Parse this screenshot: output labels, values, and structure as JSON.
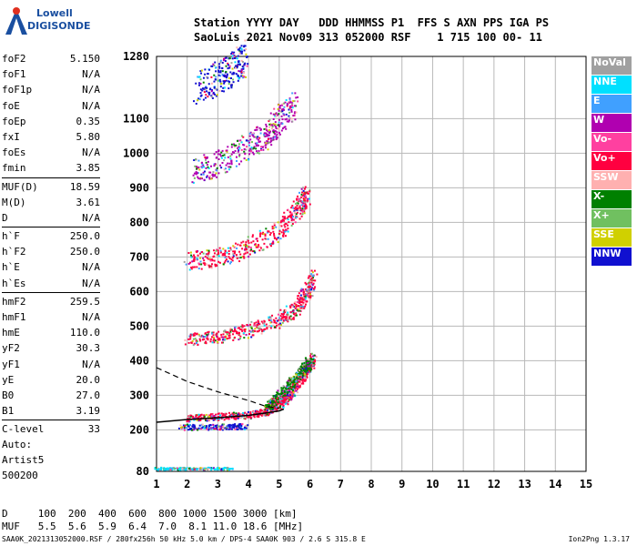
{
  "logo": {
    "line1": "Lowell",
    "line2": "DIGISONDE"
  },
  "header": {
    "line1": "Station YYYY DAY   DDD HHMMSS P1  FFS S AXN PPS IGA PS",
    "line2": "SaoLuis 2021 Nov09 313 052000 RSF    1 715 100 00- 11"
  },
  "params": [
    {
      "group": [
        {
          "name": "foF2",
          "value": "5.150"
        },
        {
          "name": "foF1",
          "value": "N/A"
        },
        {
          "name": "foF1p",
          "value": "N/A"
        },
        {
          "name": "foE",
          "value": "N/A"
        },
        {
          "name": "foEp",
          "value": "0.35"
        },
        {
          "name": "fxI",
          "value": "5.80"
        },
        {
          "name": "foEs",
          "value": "N/A"
        },
        {
          "name": "fmin",
          "value": "3.85"
        }
      ]
    },
    {
      "group": [
        {
          "name": "MUF(D)",
          "value": "18.59"
        },
        {
          "name": "M(D)",
          "value": "3.61"
        },
        {
          "name": "D",
          "value": "N/A"
        }
      ]
    },
    {
      "group": [
        {
          "name": "h`F",
          "value": "250.0"
        },
        {
          "name": "h`F2",
          "value": "250.0"
        },
        {
          "name": "h`E",
          "value": "N/A"
        },
        {
          "name": "h`Es",
          "value": "N/A"
        }
      ]
    },
    {
      "group": [
        {
          "name": "hmF2",
          "value": "259.5"
        },
        {
          "name": "hmF1",
          "value": "N/A"
        },
        {
          "name": "hmE",
          "value": "110.0"
        },
        {
          "name": "yF2",
          "value": "30.3"
        },
        {
          "name": "yF1",
          "value": "N/A"
        },
        {
          "name": "yE",
          "value": "20.0"
        },
        {
          "name": "B0",
          "value": "27.0"
        },
        {
          "name": "B1",
          "value": "3.19"
        }
      ]
    },
    {
      "group": [
        {
          "name": "C-level",
          "value": "33"
        }
      ]
    }
  ],
  "auto": {
    "line1": "Auto:",
    "line2": "Artist5",
    "line3": "500200"
  },
  "legend": [
    {
      "label": "NoVal",
      "color": "#a0a0a0"
    },
    {
      "label": "NNE",
      "color": "#00e0ff"
    },
    {
      "label": "E",
      "color": "#40a0ff"
    },
    {
      "label": "W",
      "color": "#b000b0"
    },
    {
      "label": "Vo-",
      "color": "#ff40a0"
    },
    {
      "label": "Vo+",
      "color": "#ff0040"
    },
    {
      "label": "SSW",
      "color": "#ffb0b0"
    },
    {
      "label": "X-",
      "color": "#008000"
    },
    {
      "label": "X+",
      "color": "#70c060"
    },
    {
      "label": "SSE",
      "color": "#d0d000"
    },
    {
      "label": "NNW",
      "color": "#1010d0"
    }
  ],
  "footer": {
    "line1": "D     100  200  400  600  800 1000 1500 3000 [km]",
    "line2": "MUF   5.5  5.6  5.9  6.4  7.0  8.1 11.0 18.6 [MHz]",
    "line3": "SAA0K_2021313052000.RSF / 280fx256h 50 kHz 5.0 km / DPS-4 SAA0K 903 / 2.6 S 315.8 E",
    "version": "Ion2Png 1.3.17"
  },
  "chart_data": {
    "type": "scatter",
    "xlim": [
      1,
      15
    ],
    "ylim": [
      80,
      1280
    ],
    "x_ticks": [
      1,
      2,
      3,
      4,
      5,
      6,
      7,
      8,
      9,
      10,
      11,
      12,
      13,
      14,
      15
    ],
    "y_ticks": [
      80,
      200,
      300,
      400,
      500,
      600,
      700,
      800,
      900,
      1000,
      1100,
      1280
    ],
    "grid": true,
    "legend_position": "right",
    "series": [
      {
        "color_key": "Vo+",
        "trace": [
          [
            2.0,
            235
          ],
          [
            3.0,
            240
          ],
          [
            4.0,
            245
          ],
          [
            4.6,
            255
          ],
          [
            5.0,
            275
          ],
          [
            5.3,
            300
          ],
          [
            5.6,
            340
          ],
          [
            5.9,
            380
          ],
          [
            6.1,
            410
          ]
        ]
      },
      {
        "color_key": "Vo+",
        "trace": [
          [
            2.0,
            465
          ],
          [
            3.0,
            470
          ],
          [
            4.0,
            490
          ],
          [
            5.0,
            520
          ],
          [
            5.6,
            560
          ],
          [
            5.9,
            600
          ],
          [
            6.1,
            640
          ]
        ]
      },
      {
        "color_key": "Vo+",
        "trace": [
          [
            2.0,
            690
          ],
          [
            3.0,
            700
          ],
          [
            4.0,
            730
          ],
          [
            5.0,
            780
          ],
          [
            5.6,
            840
          ],
          [
            5.9,
            880
          ]
        ]
      },
      {
        "color_key": "W",
        "trace": [
          [
            2.2,
            950
          ],
          [
            3.0,
            970
          ],
          [
            4.0,
            1020
          ],
          [
            4.6,
            1060
          ],
          [
            5.0,
            1100
          ],
          [
            5.5,
            1140
          ]
        ]
      },
      {
        "color_key": "NNW",
        "trace": [
          [
            2.3,
            1190
          ],
          [
            3.0,
            1220
          ],
          [
            3.5,
            1250
          ],
          [
            3.9,
            1280
          ]
        ]
      },
      {
        "color_key": "NNW",
        "trace": [
          [
            1.8,
            210
          ],
          [
            3.0,
            210
          ],
          [
            3.9,
            212
          ]
        ]
      },
      {
        "color_key": "X-",
        "trace": [
          [
            4.6,
            270
          ],
          [
            5.0,
            300
          ],
          [
            5.4,
            340
          ],
          [
            5.8,
            380
          ],
          [
            6.0,
            400
          ]
        ]
      },
      {
        "color_key": "NNE",
        "trace": [
          [
            1.0,
            90
          ],
          [
            2.0,
            90
          ],
          [
            3.5,
            90
          ]
        ]
      }
    ],
    "profile_curve": [
      [
        1.0,
        222
      ],
      [
        2.0,
        230
      ],
      [
        3.0,
        235
      ],
      [
        4.0,
        242
      ],
      [
        4.5,
        248
      ],
      [
        5.0,
        255
      ],
      [
        5.15,
        260
      ]
    ],
    "profile_dashed": [
      [
        1.0,
        380
      ],
      [
        2.0,
        340
      ],
      [
        3.0,
        310
      ],
      [
        4.0,
        285
      ],
      [
        4.5,
        270
      ],
      [
        5.0,
        262
      ]
    ]
  }
}
